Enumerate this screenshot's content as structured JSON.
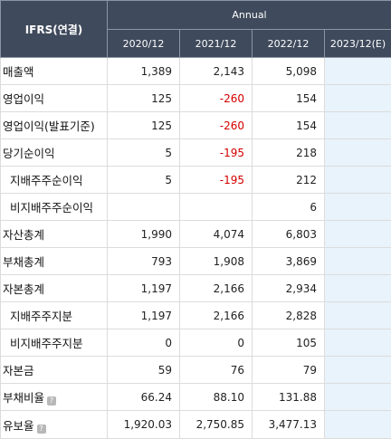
{
  "header": {
    "corner": "IFRS(연결)",
    "period": "Annual",
    "years": [
      "2020/12",
      "2021/12",
      "2022/12",
      "2023/12(E)"
    ]
  },
  "rows": [
    {
      "label": "매출액",
      "values": [
        "1,389",
        "2,143",
        "5,098",
        ""
      ]
    },
    {
      "label": "영업이익",
      "values": [
        "125",
        "-260",
        "154",
        ""
      ]
    },
    {
      "label": "영업이익(발표기준)",
      "values": [
        "125",
        "-260",
        "154",
        ""
      ]
    },
    {
      "label": "당기순이익",
      "values": [
        "5",
        "-195",
        "218",
        ""
      ]
    },
    {
      "label": "지배주주순이익",
      "values": [
        "5",
        "-195",
        "212",
        ""
      ]
    },
    {
      "label": "비지배주주순이익",
      "values": [
        "",
        "",
        "6",
        ""
      ]
    },
    {
      "label": "자산총계",
      "values": [
        "1,990",
        "4,074",
        "6,803",
        ""
      ]
    },
    {
      "label": "부채총계",
      "values": [
        "793",
        "1,908",
        "3,869",
        ""
      ]
    },
    {
      "label": "자본총계",
      "values": [
        "1,197",
        "2,166",
        "2,934",
        ""
      ]
    },
    {
      "label": "지배주주지분",
      "values": [
        "1,197",
        "2,166",
        "2,828",
        ""
      ]
    },
    {
      "label": "비지배주주지분",
      "values": [
        "0",
        "0",
        "105",
        ""
      ]
    },
    {
      "label": "자본금",
      "values": [
        "59",
        "76",
        "79",
        ""
      ]
    },
    {
      "label": "부채비율",
      "values": [
        "66.24",
        "88.10",
        "131.88",
        ""
      ]
    },
    {
      "label": "유보율",
      "values": [
        "1,920.03",
        "2,750.85",
        "3,477.13",
        ""
      ]
    }
  ],
  "icons": {
    "help": "help-icon"
  },
  "colors": {
    "header_bg": "#3f4a5c",
    "negative": "#d40000",
    "estimate_bg": "#e8f3fb"
  }
}
